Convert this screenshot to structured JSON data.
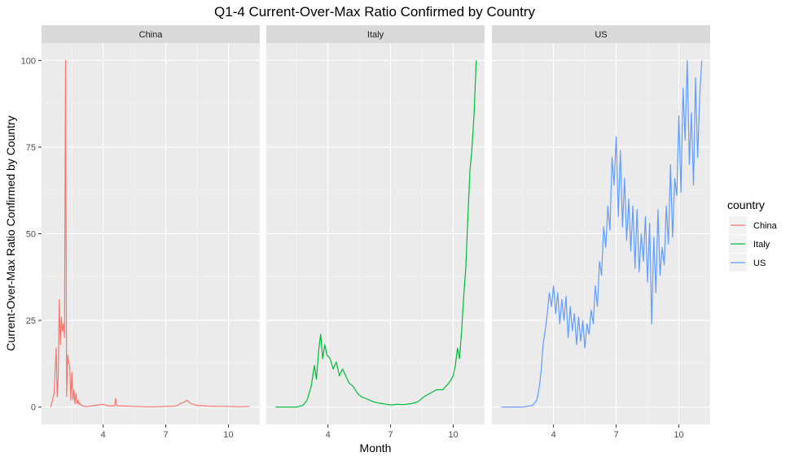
{
  "chart_data": {
    "type": "line",
    "title": "Q1-4 Current-Over-Max Ratio Confirmed by Country",
    "xlabel": "Month",
    "ylabel": "Current-Over-Max Ratio Confirmed by Country",
    "xlim": [
      1.05,
      11.5
    ],
    "ylim": [
      -5,
      105
    ],
    "x_ticks": [
      4,
      7,
      10
    ],
    "y_ticks": [
      0,
      25,
      50,
      75,
      100
    ],
    "grid": true,
    "facet_by": "country",
    "legend": {
      "title": "country",
      "position": "right"
    },
    "panels": [
      "China",
      "Italy",
      "US"
    ],
    "series": [
      {
        "name": "China",
        "color": "#F8766D",
        "x": [
          1.5,
          1.65,
          1.75,
          1.8,
          1.85,
          1.9,
          1.95,
          2.0,
          2.05,
          2.1,
          2.15,
          2.2,
          2.25,
          2.3,
          2.35,
          2.4,
          2.45,
          2.5,
          2.55,
          2.6,
          2.65,
          2.7,
          2.75,
          2.8,
          2.85,
          2.9,
          2.95,
          3.0,
          3.05,
          3.15,
          3.3,
          3.6,
          4.0,
          4.3,
          4.55,
          4.6,
          4.65,
          5.0,
          5.5,
          6.0,
          6.5,
          7.0,
          7.5,
          7.7,
          7.9,
          8.0,
          8.2,
          8.5,
          9.0,
          9.5,
          10.0,
          10.5,
          11.0
        ],
        "values": [
          0,
          4,
          17,
          3,
          9,
          31,
          18,
          26,
          22,
          24,
          20,
          100,
          3,
          15,
          13,
          12,
          2,
          10,
          2,
          5,
          1,
          4,
          1,
          2,
          0.8,
          1,
          0.5,
          0.5,
          0.3,
          0.2,
          0.2,
          0.5,
          0.8,
          0.3,
          0.4,
          2.5,
          0.4,
          0.3,
          0.2,
          0.1,
          0.1,
          0.2,
          0.3,
          1.0,
          1.5,
          2.0,
          1.0,
          0.5,
          0.3,
          0.2,
          0.2,
          0.1,
          0.2
        ]
      },
      {
        "name": "Italy",
        "color": "#00BA38",
        "x": [
          1.5,
          2.5,
          2.8,
          3.0,
          3.2,
          3.35,
          3.45,
          3.55,
          3.65,
          3.75,
          3.85,
          3.95,
          4.1,
          4.25,
          4.4,
          4.55,
          4.7,
          4.85,
          5.0,
          5.2,
          5.4,
          5.6,
          5.8,
          6.0,
          6.2,
          6.4,
          6.6,
          6.8,
          7.0,
          7.3,
          7.6,
          8.0,
          8.3,
          8.6,
          8.9,
          9.2,
          9.5,
          9.8,
          10.0,
          10.1,
          10.2,
          10.3,
          10.4,
          10.5,
          10.6,
          10.7,
          10.8,
          10.9,
          11.0,
          11.1
        ],
        "values": [
          0,
          0,
          0.5,
          2,
          6,
          12,
          8,
          16,
          21,
          14,
          18,
          15,
          14,
          11,
          13,
          9,
          11,
          9,
          7,
          6,
          4,
          3,
          2.5,
          2,
          1.5,
          1.2,
          1,
          0.8,
          0.6,
          0.8,
          0.7,
          1,
          1.5,
          3,
          4,
          5,
          5,
          7,
          9,
          12,
          17,
          14,
          22,
          32,
          40,
          55,
          68,
          75,
          85,
          100
        ]
      },
      {
        "name": "US",
        "color": "#619CFF",
        "x": [
          1.5,
          2.5,
          3.0,
          3.2,
          3.3,
          3.4,
          3.5,
          3.6,
          3.7,
          3.8,
          3.9,
          4.0,
          4.1,
          4.2,
          4.3,
          4.4,
          4.5,
          4.6,
          4.7,
          4.8,
          4.9,
          5.0,
          5.1,
          5.2,
          5.3,
          5.4,
          5.5,
          5.6,
          5.7,
          5.8,
          5.9,
          6.0,
          6.1,
          6.2,
          6.3,
          6.4,
          6.5,
          6.6,
          6.7,
          6.8,
          6.9,
          7.0,
          7.1,
          7.2,
          7.3,
          7.4,
          7.5,
          7.6,
          7.7,
          7.8,
          7.9,
          8.0,
          8.1,
          8.2,
          8.3,
          8.4,
          8.5,
          8.6,
          8.7,
          8.8,
          8.9,
          9.0,
          9.1,
          9.2,
          9.3,
          9.4,
          9.5,
          9.6,
          9.7,
          9.8,
          9.9,
          10.0,
          10.1,
          10.2,
          10.3,
          10.4,
          10.5,
          10.6,
          10.7,
          10.8,
          10.9,
          11.0,
          11.1
        ],
        "values": [
          0,
          0,
          0.5,
          2,
          5,
          10,
          18,
          22,
          27,
          33,
          29,
          35,
          27,
          33,
          24,
          31,
          25,
          32,
          20,
          29,
          22,
          27,
          18,
          26,
          19,
          25,
          17,
          24,
          21,
          28,
          24,
          35,
          29,
          42,
          38,
          52,
          46,
          58,
          51,
          72,
          64,
          78,
          55,
          74,
          52,
          66,
          48,
          60,
          45,
          58,
          40,
          57,
          39,
          50,
          42,
          55,
          36,
          53,
          24,
          49,
          33,
          57,
          38,
          46,
          41,
          58,
          47,
          70,
          49,
          66,
          61,
          84,
          62,
          92,
          77,
          100,
          70,
          85,
          64,
          95,
          72,
          90,
          100
        ]
      }
    ]
  }
}
